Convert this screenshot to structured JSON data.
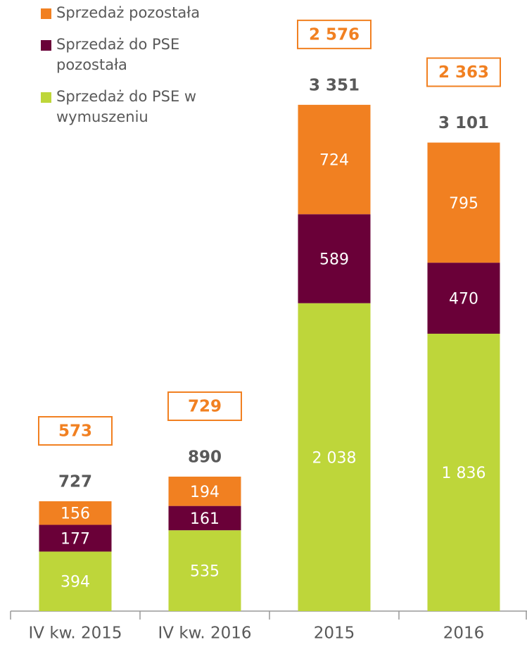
{
  "chart_data": {
    "type": "stacked_bar",
    "categories": [
      "IV kw. 2015",
      "IV kw. 2016",
      "2015",
      "2016"
    ],
    "series": [
      {
        "name": "Sprzedaż do PSE w wymuszeniu",
        "color": "#bed63a",
        "values": [
          394,
          535,
          2038,
          1836
        ],
        "value_labels": [
          "394",
          "535",
          "2 038",
          "1 836"
        ]
      },
      {
        "name": "Sprzedaż do PSE pozostała",
        "color": "#6a0038",
        "values": [
          177,
          161,
          589,
          470
        ]
      },
      {
        "name": "Sprzedaż pozostała",
        "color": "#f18021",
        "values": [
          156,
          194,
          724,
          795
        ]
      }
    ],
    "totals": [
      727,
      890,
      3351,
      3101
    ],
    "totals_labels": [
      "727",
      "890",
      "3 351",
      "3 101"
    ],
    "boxed_values": [
      573,
      729,
      2576,
      2363
    ],
    "boxed_labels": [
      "573",
      "729",
      "2 576",
      "2 363"
    ],
    "legend": "top-left"
  }
}
